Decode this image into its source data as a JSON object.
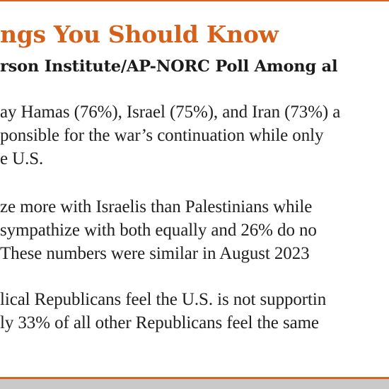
{
  "header": {
    "title": "ngs You Should Know",
    "subtitle": "rson Institute/AP-NORC Poll Among al"
  },
  "paragraphs": [
    {
      "lines": [
        "ay Hamas (76%), Israel (75%), and Iran (73%) a",
        "ponsible for the war’s continuation while only",
        "e U.S."
      ]
    },
    {
      "lines": [
        "ze more with Israelis than Palestinians while",
        "sympathize with both equally and 26% do no",
        "These numbers were similar in August 2023"
      ]
    },
    {
      "lines": [
        "lical Republicans feel the U.S. is not supportin",
        "ly 33% of all other Republicans feel the same"
      ]
    }
  ],
  "colors": {
    "accent": "#d4601a",
    "text": "#1e1e1e",
    "footer_band": "#c9c9c9"
  }
}
